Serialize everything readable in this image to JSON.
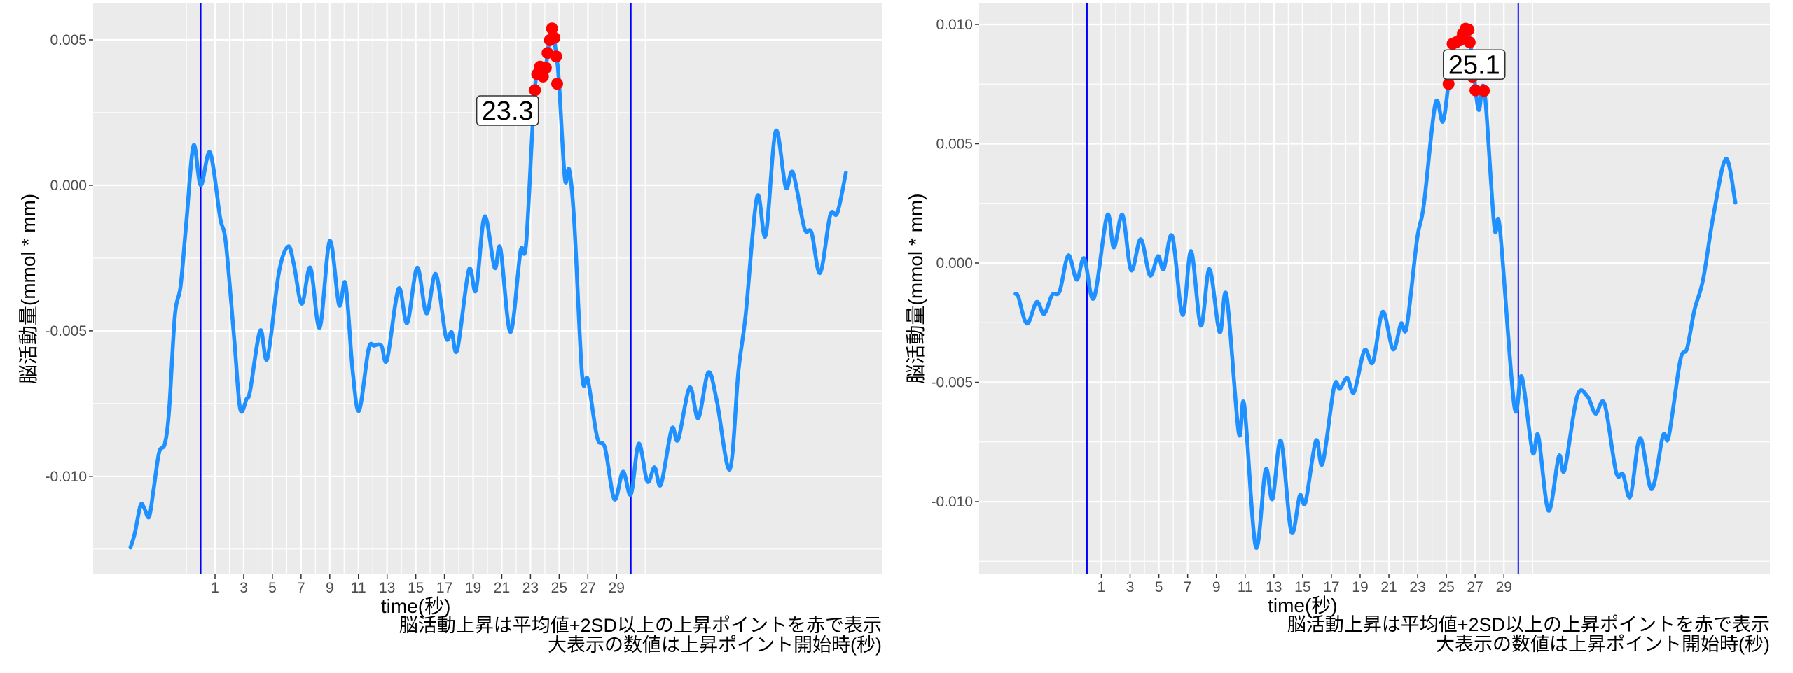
{
  "chart_data": [
    {
      "type": "line",
      "xlabel": "time(秒)",
      "ylabel": "脳活動量(mmol * mm)",
      "caption": [
        "脳活動上昇は平均値+2SD以上の上昇ポイントを赤で表示",
        "大表示の数値は上昇ポイント開始時(秒)"
      ],
      "xlim": [
        -7.5,
        47.5
      ],
      "ylim": [
        -0.01337,
        0.00625
      ],
      "x_ticks": [
        1,
        3,
        5,
        7,
        9,
        11,
        13,
        15,
        17,
        19,
        21,
        23,
        25,
        27,
        29
      ],
      "x_tick_labels": [
        "1",
        "3",
        "5",
        "7",
        "9",
        "11",
        "13",
        "15",
        "17",
        "19",
        "21",
        "23",
        "25",
        "27",
        "29"
      ],
      "y_ticks": [
        0.005,
        0.0,
        -0.005,
        -0.01
      ],
      "y_tick_labels": [
        "0.005",
        "0.000",
        "-0.005",
        "-0.010"
      ],
      "y_minor": [
        0.0025,
        -0.0025,
        -0.0075,
        -0.0125
      ],
      "grid": true,
      "vlines": [
        0,
        30
      ],
      "series": {
        "name": "脳活動量",
        "color": "#1E90FF",
        "x": [
          -4.9,
          -4.6,
          -4.2,
          -3.95,
          -3.6,
          -3.3,
          -2.9,
          -2.5,
          -2.2,
          -1.8,
          -1.4,
          -1.0,
          -0.5,
          0.0,
          0.65,
          1.35,
          1.75,
          2.35,
          2.75,
          3.2,
          3.45,
          4.15,
          4.65,
          5.45,
          6.1,
          6.5,
          7.05,
          7.65,
          8.3,
          9.0,
          9.65,
          10.1,
          10.6,
          11.05,
          11.7,
          12.1,
          12.6,
          13.0,
          13.8,
          14.4,
          15.1,
          15.75,
          16.4,
          17.1,
          17.5,
          17.9,
          18.7,
          19.2,
          19.8,
          20.5,
          20.9,
          21.6,
          22.3,
          22.7,
          23.3,
          23.7,
          24.1,
          24.45,
          24.8,
          25.0,
          25.4,
          25.7,
          26.05,
          26.6,
          27.0,
          27.65,
          28.2,
          28.85,
          29.45,
          30.0,
          30.55,
          31.15,
          31.65,
          32.1,
          32.85,
          33.3,
          34.1,
          34.7,
          35.4,
          36.0,
          36.9,
          37.5,
          38.0,
          38.8,
          39.4,
          40.1,
          40.8,
          41.3,
          42.1,
          42.6,
          43.2,
          43.9,
          44.4,
          45.0
        ],
        "y": [
          -0.01245,
          -0.01197,
          -0.011,
          -0.01108,
          -0.0114,
          -0.0105,
          -0.00918,
          -0.00888,
          -0.00771,
          -0.00448,
          -0.00345,
          -0.00125,
          0.00137,
          0.0,
          0.00113,
          -0.0011,
          -0.00198,
          -0.00536,
          -0.00768,
          -0.00734,
          -0.00705,
          -0.00499,
          -0.00595,
          -0.00301,
          -0.0021,
          -0.00272,
          -0.00407,
          -0.00283,
          -0.00489,
          -0.00191,
          -0.00411,
          -0.00338,
          -0.00639,
          -0.00774,
          -0.00565,
          -0.00551,
          -0.00551,
          -0.00599,
          -0.00355,
          -0.00473,
          -0.00283,
          -0.0044,
          -0.00305,
          -0.00521,
          -0.00504,
          -0.00565,
          -0.00291,
          -0.0036,
          -0.00107,
          -0.00283,
          -0.00216,
          -0.00504,
          -0.00228,
          -0.00198,
          0.0033,
          0.00382,
          0.0042,
          0.00543,
          0.00448,
          0.00345,
          0.00022,
          0.00054,
          -0.00125,
          -0.00653,
          -0.00668,
          -0.00866,
          -0.00903,
          -0.01079,
          -0.00984,
          -0.01062,
          -0.00888,
          -0.01018,
          -0.00969,
          -0.01028,
          -0.00837,
          -0.00874,
          -0.00695,
          -0.008,
          -0.00643,
          -0.00742,
          -0.00976,
          -0.00639,
          -0.00448,
          -0.0004,
          -0.00172,
          0.00186,
          -7e-05,
          0.00044,
          -0.00147,
          -0.00162,
          -0.00301,
          -0.00103,
          -0.00095,
          0.00044
        ]
      },
      "highlight_points": {
        "color": "#FF0000",
        "x": [
          23.31,
          23.47,
          23.67,
          23.87,
          24.07,
          24.19,
          24.35,
          24.5,
          24.67,
          24.79,
          24.86
        ],
        "y": [
          0.00327,
          0.00382,
          0.00408,
          0.00374,
          0.00404,
          0.00455,
          0.00499,
          0.00539,
          0.00507,
          0.00443,
          0.00349
        ]
      },
      "annotation": {
        "text": "23.3",
        "x": 21.4,
        "y": 0.00257
      }
    },
    {
      "type": "line",
      "xlabel": "time(秒)",
      "ylabel": "脳活動量(mmol * mm)",
      "caption": [
        "脳活動上昇は平均値+2SD以上の上昇ポイントを赤で表示",
        "大表示の数値は上昇ポイント開始時(秒)"
      ],
      "xlim": [
        -7.5,
        47.5
      ],
      "ylim": [
        -0.01302,
        0.01088
      ],
      "x_ticks": [
        1,
        3,
        5,
        7,
        9,
        11,
        13,
        15,
        17,
        19,
        21,
        23,
        25,
        27,
        29
      ],
      "x_tick_labels": [
        "1",
        "3",
        "5",
        "7",
        "9",
        "11",
        "13",
        "15",
        "17",
        "19",
        "21",
        "23",
        "25",
        "27",
        "29"
      ],
      "y_ticks": [
        0.01,
        0.005,
        0.0,
        -0.005,
        -0.01
      ],
      "y_tick_labels": [
        "0.010",
        "0.005",
        "0.000",
        "-0.005",
        "-0.010"
      ],
      "y_minor": [
        0.0075,
        0.0025,
        -0.0025,
        -0.0075,
        -0.0125
      ],
      "grid": true,
      "vlines": [
        0,
        30
      ],
      "series": {
        "name": "脳活動量",
        "color": "#1E90FF",
        "x": [
          -4.97,
          -4.77,
          -4.17,
          -3.5,
          -2.98,
          -2.42,
          -1.9,
          -1.3,
          -0.71,
          -0.19,
          0.48,
          1.4,
          1.87,
          2.47,
          3.07,
          3.74,
          4.38,
          4.94,
          5.34,
          5.93,
          6.65,
          7.24,
          7.92,
          8.52,
          9.23,
          9.71,
          10.55,
          10.94,
          11.74,
          12.42,
          12.9,
          13.49,
          14.21,
          14.8,
          15.2,
          15.92,
          16.39,
          17.19,
          17.59,
          18.1,
          18.58,
          19.3,
          19.89,
          20.57,
          21.29,
          21.84,
          22.24,
          22.96,
          23.43,
          24.23,
          24.75,
          25.15,
          25.54,
          26.14,
          26.46,
          26.66,
          26.93,
          27.25,
          27.65,
          28.33,
          28.72,
          29.72,
          30.24,
          30.99,
          31.39,
          32.1,
          32.82,
          33.22,
          34.09,
          34.81,
          35.37,
          36.0,
          36.8,
          37.28,
          37.8,
          38.47,
          39.27,
          40.06,
          40.46,
          41.26,
          41.74,
          42.26,
          42.85,
          43.57,
          44.44,
          45.1
        ],
        "y": [
          -0.00129,
          -0.00142,
          -0.00254,
          -0.00163,
          -0.00213,
          -0.00133,
          -0.00118,
          0.00032,
          -0.0007,
          0.0002,
          -0.00147,
          0.00199,
          0.00065,
          0.00202,
          -0.0003,
          0.001,
          -0.00052,
          0.00029,
          -0.00025,
          0.00113,
          -0.00217,
          0.0005,
          -0.00262,
          -0.00025,
          -0.0029,
          -0.00136,
          -0.0071,
          -0.00595,
          -0.0119,
          -0.00867,
          -0.00989,
          -0.00745,
          -0.01127,
          -0.00975,
          -0.01002,
          -0.00745,
          -0.0084,
          -0.00518,
          -0.00527,
          -0.00482,
          -0.00541,
          -0.00366,
          -0.00416,
          -0.00204,
          -0.00362,
          -0.00254,
          -0.00267,
          0.001,
          0.00244,
          0.00668,
          0.00593,
          0.00754,
          0.00925,
          0.00946,
          0.00987,
          0.00919,
          0.00781,
          0.00642,
          0.00722,
          0.00154,
          0.00145,
          -0.00599,
          -0.00477,
          -0.00792,
          -0.00724,
          -0.01038,
          -0.0081,
          -0.00867,
          -0.00559,
          -0.00559,
          -0.00631,
          -0.0059,
          -0.00876,
          -0.00885,
          -0.00978,
          -0.00733,
          -0.00948,
          -0.00724,
          -0.00728,
          -0.0041,
          -0.00357,
          -0.00195,
          -0.0007,
          0.00199,
          0.00437,
          0.00253
        ]
      },
      "highlight_points": {
        "color": "#FF0000",
        "x": [
          25.15,
          25.43,
          25.66,
          25.94,
          26.14,
          26.34,
          26.54,
          26.62,
          26.82,
          27.02,
          27.61
        ],
        "y": [
          0.00751,
          0.00919,
          0.00925,
          0.00934,
          0.00961,
          0.00982,
          0.00978,
          0.00925,
          0.00781,
          0.00724,
          0.00722
        ]
      },
      "annotation": {
        "text": "25.1",
        "x": 26.93,
        "y": 0.00832
      }
    }
  ],
  "colors": {
    "panel": "#EBEBEB",
    "grid": "#FFFFFF",
    "vline": "#0000FF",
    "line": "#1E90FF",
    "points": "#FF0000"
  }
}
